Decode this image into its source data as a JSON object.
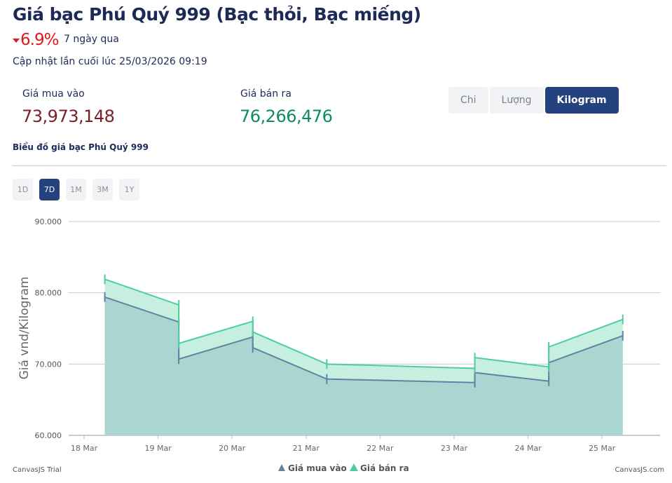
{
  "header": {
    "title": "Giá bạc Phú Quý 999 (Bạc thỏi, Bạc miếng)",
    "change": "6.9%",
    "period": "7 ngày qua",
    "updated": "Cập nhật lần cuối lúc 25/03/2026 09:19"
  },
  "prices": {
    "buy_label": "Giá mua vào",
    "buy_value": "73,973,148",
    "sell_label": "Giá bán ra",
    "sell_value": "76,266,476"
  },
  "units": [
    {
      "label": "Chi"
    },
    {
      "label": "Lượng"
    },
    {
      "label": "Kilogram",
      "active": true
    }
  ],
  "chart_title": "Biểu đồ giá bạc Phú Quý 999",
  "ranges": [
    {
      "label": "1D"
    },
    {
      "label": "7D",
      "active": true
    },
    {
      "label": "1M"
    },
    {
      "label": "3M"
    },
    {
      "label": "1Y"
    }
  ],
  "colors": {
    "buy_line": "#5f84a3",
    "buy_fill": "#a9d4d0",
    "sell_line": "#4dcf9c",
    "sell_fill": "#c6efdf",
    "down": "#e4161b",
    "buy_price": "#7a1f25",
    "sell_price": "#0d8a67"
  },
  "chart_data": {
    "type": "area",
    "ylabel": "Giá vnd/Kilogram",
    "ylim": [
      60000,
      90000
    ],
    "yticks": [
      {
        "v": 60000,
        "label": "60.000"
      },
      {
        "v": 70000,
        "label": "70.000"
      },
      {
        "v": 80000,
        "label": "80.000"
      },
      {
        "v": 90000,
        "label": "90.000"
      }
    ],
    "xticks": [
      {
        "d": 18,
        "label": "18 Mar"
      },
      {
        "d": 19,
        "label": "19 Mar"
      },
      {
        "d": 20,
        "label": "20 Mar"
      },
      {
        "d": 21,
        "label": "21 Mar"
      },
      {
        "d": 22,
        "label": "22 Mar"
      },
      {
        "d": 23,
        "label": "23 Mar"
      },
      {
        "d": 24,
        "label": "24 Mar"
      },
      {
        "d": 25,
        "label": "25 Mar"
      }
    ],
    "xlim": [
      17.8,
      25.8
    ],
    "series": [
      {
        "name": "Giá mua vào",
        "points": [
          [
            18.28,
            79400
          ],
          [
            19.28,
            75900
          ],
          [
            19.28,
            70700
          ],
          [
            20.28,
            73800
          ],
          [
            20.28,
            72300
          ],
          [
            21.28,
            67900
          ],
          [
            23.28,
            67400
          ],
          [
            23.28,
            68800
          ],
          [
            24.28,
            67600
          ],
          [
            24.28,
            70200
          ],
          [
            25.28,
            73973
          ]
        ]
      },
      {
        "name": "Giá bán ra",
        "points": [
          [
            18.28,
            81900
          ],
          [
            19.28,
            78300
          ],
          [
            19.28,
            72900
          ],
          [
            20.28,
            76000
          ],
          [
            20.28,
            74500
          ],
          [
            21.28,
            70000
          ],
          [
            23.28,
            69400
          ],
          [
            23.28,
            70900
          ],
          [
            24.28,
            69600
          ],
          [
            24.28,
            72400
          ],
          [
            25.28,
            76266
          ]
        ]
      }
    ],
    "legend": "bottom",
    "credits_left": "CanvasJS Trial",
    "credits_right": "CanvasJS.com"
  }
}
